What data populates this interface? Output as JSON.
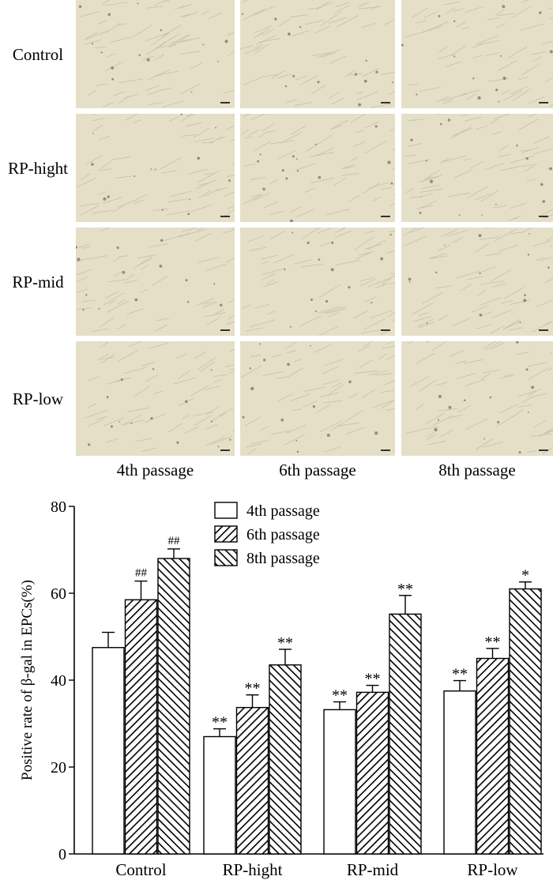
{
  "micrographs": {
    "rows": [
      "Control",
      "RP-hight",
      "RP-mid",
      "RP-low"
    ],
    "columns": [
      "4th passage",
      "6th passage",
      "8th passage"
    ],
    "background_color": "#ece5c9"
  },
  "chart_data": {
    "type": "bar",
    "ylabel": "Positive rate of β-gal in EPCs(%)",
    "xlabel": "",
    "ylim": [
      0,
      80
    ],
    "yticks": [
      0,
      20,
      40,
      60,
      80
    ],
    "categories": [
      "Control",
      "RP-hight",
      "RP-mid",
      "RP-low"
    ],
    "legend_position": "top-center",
    "series": [
      {
        "name": "4th passage",
        "pattern": "none",
        "values": [
          47.5,
          27.0,
          33.2,
          37.5
        ],
        "errors": [
          3.5,
          1.8,
          1.8,
          2.4
        ],
        "annotations": [
          "",
          "**",
          "**",
          "**"
        ]
      },
      {
        "name": "6th passage",
        "pattern": "hatch-forward",
        "values": [
          58.5,
          33.7,
          37.2,
          45.0
        ],
        "errors": [
          4.3,
          2.9,
          1.6,
          2.3
        ],
        "annotations": [
          "##",
          "**",
          "**",
          "**"
        ]
      },
      {
        "name": "8th passage",
        "pattern": "hatch-backward",
        "values": [
          68.0,
          43.5,
          55.2,
          61.0
        ],
        "errors": [
          2.2,
          3.6,
          4.3,
          1.6
        ],
        "annotations": [
          "##",
          "**",
          "**",
          "*"
        ]
      }
    ]
  }
}
